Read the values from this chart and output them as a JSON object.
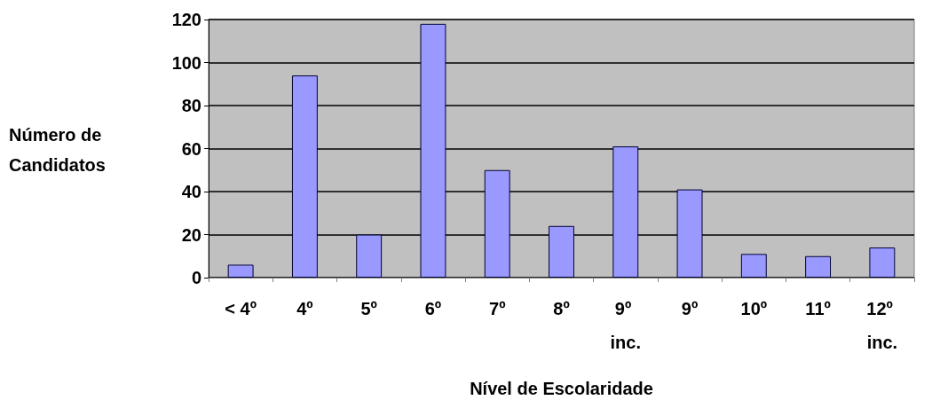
{
  "chart_data": {
    "type": "bar",
    "xlabel": "Nível de Escolaridade",
    "ylabel": "Número de Candidatos",
    "categories": [
      "< 4º",
      "4º",
      "5º",
      "6º",
      "7º",
      "8º",
      "9º inc.",
      "9º",
      "10º",
      "11º",
      "12º inc."
    ],
    "values": [
      6,
      94,
      20,
      118,
      50,
      24,
      61,
      41,
      11,
      10,
      14
    ],
    "color": "#9999ff",
    "ylim": [
      0,
      120
    ],
    "yticks": [
      0,
      20,
      40,
      60,
      80,
      100,
      120
    ],
    "grid": true
  }
}
